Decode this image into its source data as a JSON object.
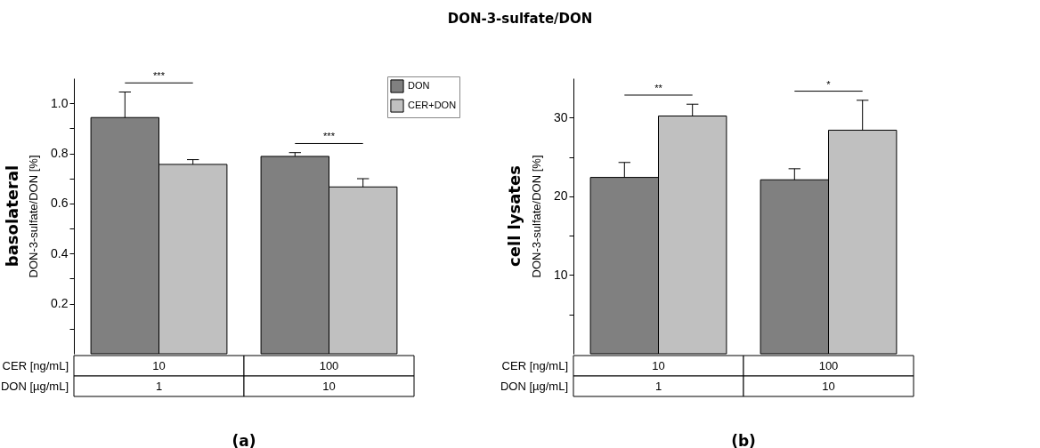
{
  "chart_data": [
    {
      "type": "bar",
      "title": "(a)",
      "subtitle": "basolateral",
      "xlabel": "CER [ng/mL]",
      "ylabel": "DON-3-sulfate/DON [%]",
      "categories": [
        "10",
        "100"
      ],
      "series": [
        {
          "name": "DON",
          "color": "#808080",
          "values": [
            0.943,
            0.788
          ],
          "errors": [
            [
              0.943,
              1.045
            ],
            [
              0.788,
              0.803
            ]
          ]
        },
        {
          "name": "CER+DON",
          "color": "#c0c0c0",
          "values": [
            0.756,
            0.666
          ],
          "errors": [
            [
              0.756,
              0.775
            ],
            [
              0.666,
              0.699
            ]
          ]
        }
      ],
      "ylim": [
        0,
        1.1
      ],
      "yticks": [
        {
          "value": 0.1,
          "label": null
        },
        0.2,
        {
          "value": 0.3,
          "label": null
        },
        0.4,
        {
          "value": 0.5,
          "label": null
        },
        0.6,
        {
          "value": 0.7,
          "label": null
        },
        0.8,
        {
          "value": 0.9,
          "label": null
        },
        {
          "value": 1,
          "label": "1.0"
        }
      ],
      "grid": false,
      "legend": "top right",
      "annotations": [
        "DON [µg/mL]",
        "1",
        "10",
        "***",
        "***",
        "DON-3-sulfate/DON"
      ]
    },
    {
      "type": "bar",
      "title": "(b)",
      "subtitle": "cell lysates",
      "xlabel": "CER [ng/mL]",
      "ylabel": "DON-3-sulfate/DON [%]",
      "categories": [
        "10",
        "100"
      ],
      "series": [
        {
          "name": "DON",
          "color": "#808080",
          "values": [
            22.4,
            22.1
          ],
          "errors": [
            [
              22.4,
              24.3
            ],
            [
              22.1,
              23.5
            ]
          ]
        },
        {
          "name": "CER+DON",
          "color": "#c0c0c0",
          "values": [
            30.2,
            28.4
          ],
          "errors": [
            [
              30.2,
              31.7
            ],
            [
              28.4,
              32.2
            ]
          ]
        }
      ],
      "ylim": [
        0,
        35
      ],
      "yticks": [
        {
          "value": 5,
          "label": null
        },
        10,
        {
          "value": 15,
          "label": null
        },
        20,
        {
          "value": 25,
          "label": null
        },
        30
      ],
      "grid": false,
      "legend": "top right",
      "annotations": [
        "DON [µg/mL]",
        "1",
        "10",
        "**",
        "*"
      ]
    }
  ]
}
